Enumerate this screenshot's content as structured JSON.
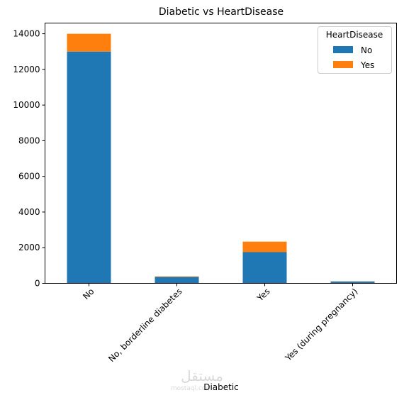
{
  "chart_data": {
    "type": "bar",
    "stacked": true,
    "title": "Diabetic vs HeartDisease",
    "xlabel": "Diabetic",
    "ylabel": "",
    "categories": [
      "No",
      "No, borderline diabetes",
      "Yes",
      "Yes (during pregnancy)"
    ],
    "series": [
      {
        "name": "No",
        "values": [
          13000,
          360,
          1750,
          105
        ],
        "color": "#1f77b4"
      },
      {
        "name": "Yes",
        "values": [
          1000,
          30,
          590,
          8
        ],
        "color": "#ff7f0e"
      }
    ],
    "ylim": [
      0,
      14600
    ],
    "yticks": [
      0,
      2000,
      4000,
      6000,
      8000,
      10000,
      12000,
      14000
    ],
    "ytick_labels": [
      "0",
      "2000",
      "4000",
      "6000",
      "8000",
      "10000",
      "12000",
      "14000"
    ],
    "x_tick_rotation": 45,
    "legend": {
      "title": "HeartDisease",
      "placement": "top-right"
    },
    "grid": false
  },
  "watermark": {
    "text": "مستقل",
    "sub": "mostaql.com"
  }
}
